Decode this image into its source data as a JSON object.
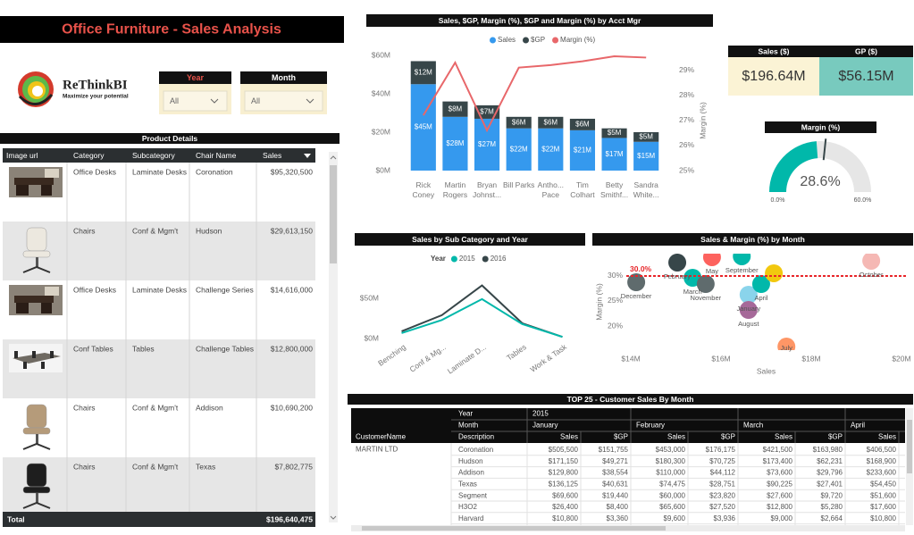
{
  "header": {
    "title": "Office Furniture - Sales Analysis",
    "logo": {
      "name": "ReThinkBI",
      "tagline": "Maximize your potential"
    }
  },
  "filters": [
    {
      "label": "Year",
      "value": "All",
      "color": "#e8524a"
    },
    {
      "label": "Month",
      "value": "All",
      "color": "#ffffff"
    }
  ],
  "kpis": [
    {
      "label": "Sales ($)",
      "value": "$196.64M",
      "color": "#fbf3d5"
    },
    {
      "label": "GP ($)",
      "value": "$56.15M",
      "color": "#78cabe"
    }
  ],
  "product_table": {
    "title": "Product Details",
    "columns": [
      "Image url",
      "Category",
      "Subcategory",
      "Chair Name",
      "Sales"
    ],
    "rows": [
      [
        "Office Desks",
        "Laminate Desks",
        "Coronation",
        "$95,320,500"
      ],
      [
        "Chairs",
        "Conf & Mgm't",
        "Hudson",
        "$29,613,150"
      ],
      [
        "Office Desks",
        "Laminate Desks",
        "Challenge Series",
        "$14,616,000"
      ],
      [
        "Conf Tables",
        "Tables",
        "Challenge Tables",
        "$12,800,000"
      ],
      [
        "Chairs",
        "Conf & Mgm't",
        "Addison",
        "$10,690,200"
      ],
      [
        "Chairs",
        "Conf & Mgm't",
        "Texas",
        "$7,802,775"
      ]
    ],
    "total": {
      "label": "Total",
      "value": "$196,640,475"
    }
  },
  "customer_table": {
    "title": "TOP 25 - Customer Sales By Month",
    "year_label": "Year",
    "year": "2015",
    "month_label": "Month",
    "months": [
      "January",
      "February",
      "March",
      "April"
    ],
    "columns": [
      "CustomerName",
      "Description",
      "Sales",
      "$GP",
      "Sales",
      "$GP",
      "Sales",
      "$GP",
      "Sales"
    ],
    "customer": "MARTIN LTD",
    "rows": [
      {
        "description": "Coronation",
        "cells": [
          "$505,500",
          "$151,755",
          "$453,000",
          "$176,175",
          "$421,500",
          "$163,980",
          "$406,500"
        ]
      },
      {
        "description": "Hudson",
        "cells": [
          "$171,150",
          "$49,271",
          "$180,300",
          "$70,725",
          "$173,400",
          "$62,231",
          "$168,900"
        ]
      },
      {
        "description": "Addison",
        "cells": [
          "$129,800",
          "$38,554",
          "$110,000",
          "$44,112",
          "$73,600",
          "$29,796",
          "$233,600"
        ]
      },
      {
        "description": "Texas",
        "cells": [
          "$136,125",
          "$40,631",
          "$74,475",
          "$28,751",
          "$90,225",
          "$27,401",
          "$54,450"
        ]
      },
      {
        "description": "Segment",
        "cells": [
          "$69,600",
          "$19,440",
          "$60,000",
          "$23,820",
          "$27,600",
          "$9,720",
          "$51,600"
        ]
      },
      {
        "description": "H3O2",
        "cells": [
          "$26,400",
          "$8,400",
          "$65,600",
          "$27,520",
          "$12,800",
          "$5,280",
          "$17,600"
        ]
      },
      {
        "description": "Harvard",
        "cells": [
          "$10,800",
          "$3,360",
          "$9,600",
          "$3,936",
          "$9,000",
          "$2,664",
          "$10,800"
        ]
      }
    ]
  },
  "chart_data": [
    {
      "type": "bar",
      "title": "Sales, $GP, Margin (%), $GP and Margin (%) by Acct Mgr",
      "stacked": true,
      "legend": "top",
      "grid": false,
      "categories": [
        "Rick Coney",
        "Martin Rogers",
        "Bryan Johnst...",
        "Bill Parks",
        "Antho... Pace",
        "Tim Colhart",
        "Betty Smithf...",
        "Sandra White..."
      ],
      "series": [
        {
          "name": "Sales",
          "color": "#3599ee",
          "values": [
            45,
            28,
            27,
            22,
            22,
            21,
            17,
            15
          ],
          "value_labels": [
            "$45M",
            "$28M",
            "$27M",
            "$22M",
            "$22M",
            "$21M",
            "$17M",
            "$15M"
          ]
        },
        {
          "name": "$GP",
          "color": "#374649",
          "values": [
            12,
            8,
            7,
            6,
            6,
            6,
            5,
            5
          ],
          "value_labels": [
            "$12M",
            "$8M",
            "$7M",
            "$6M",
            "$6M",
            "$6M",
            "$5M",
            "$5M"
          ]
        },
        {
          "name": "Margin (%)",
          "color": "#e8676a",
          "type": "line",
          "axis": "y2",
          "values": [
            27.2,
            29.3,
            26.6,
            29.1,
            29.2,
            29.35,
            29.55,
            29.5
          ]
        }
      ],
      "ylim": [
        0,
        62.8
      ],
      "yticks": [
        {
          "value": 0,
          "label": "$0M"
        },
        {
          "value": 20,
          "label": "$20M"
        },
        {
          "value": 40,
          "label": "$40M"
        },
        {
          "value": 60,
          "label": "$60M"
        }
      ],
      "y2lim": [
        25,
        29.8
      ],
      "y2ticks": [
        {
          "value": 25,
          "label": "25%"
        },
        {
          "value": 26,
          "label": "26%"
        },
        {
          "value": 27,
          "label": "27%"
        },
        {
          "value": 28,
          "label": "28%"
        },
        {
          "value": 29,
          "label": "29%"
        }
      ],
      "y2_label": "Margin (%)"
    },
    {
      "type": "gauge",
      "title": "Margin (%)",
      "value": 28.6,
      "value_label": "28.6%",
      "range": [
        0,
        60
      ],
      "ticks": [
        {
          "value": 0,
          "label": "0.0%"
        },
        {
          "value": 60,
          "label": "60.0%"
        }
      ],
      "target": 32,
      "color": "#01b8aa",
      "track_color": "#e6e6e6",
      "target_color": "#374649"
    },
    {
      "type": "line",
      "title": "Sales by Sub Category and Year",
      "legend_title": "Year",
      "grid": false,
      "categories": [
        "Benching",
        "Conf & Mg...",
        "Laminate D...",
        "Tables",
        "Work & Task"
      ],
      "series": [
        {
          "name": "2015",
          "color": "#01b8aa",
          "values": [
            6.7,
            23,
            49,
            18,
            2
          ]
        },
        {
          "name": "2016",
          "color": "#374649",
          "values": [
            9,
            29,
            66,
            19,
            2
          ]
        }
      ],
      "ylim": [
        0,
        88
      ],
      "yticks": [
        {
          "value": 0,
          "label": "$0M"
        },
        {
          "value": 50,
          "label": "$50M"
        }
      ]
    },
    {
      "type": "scatter",
      "title": "Sales & Margin (%) by Month",
      "x_label": "Sales",
      "y_label": "Margin (%)",
      "categories": [
        "January",
        "February",
        "March",
        "April",
        "May",
        null,
        "July",
        "August",
        "September",
        "October",
        "November",
        "December"
      ],
      "x": [
        16.61,
        15.03,
        15.37,
        16.89,
        15.8,
        17.17,
        17.45,
        16.61,
        16.46,
        19.33,
        15.66,
        14.12
      ],
      "values": [
        26.25,
        32.68,
        29.64,
        28.39,
        33.75,
        30.54,
        15.89,
        23.21,
        33.93,
        33.04,
        28.39,
        28.75
      ],
      "colors": [
        "#8ad4eb",
        "#374649",
        "#01b8aa",
        "#01b8aa",
        "#fd625e",
        "#f2c80f",
        "#fe9666",
        "#a66999",
        "#01b8aa",
        "#f5b8b4",
        "#5f6b6d",
        "#5f6b6d"
      ],
      "xlim": [
        13.9,
        20.1
      ],
      "xticks": [
        {
          "value": 14,
          "label": "$14M"
        },
        {
          "value": 16,
          "label": "$16M"
        },
        {
          "value": 18,
          "label": "$18M"
        },
        {
          "value": 20,
          "label": "$20M"
        }
      ],
      "ylim": [
        15.2,
        34.3
      ],
      "yticks": [
        {
          "value": 20,
          "label": "20%"
        },
        {
          "value": 25,
          "label": "25%"
        },
        {
          "value": 30,
          "label": "30%"
        }
      ],
      "reference_line": {
        "value": 30,
        "label": "30.0%",
        "color": "#e8262a"
      }
    }
  ]
}
